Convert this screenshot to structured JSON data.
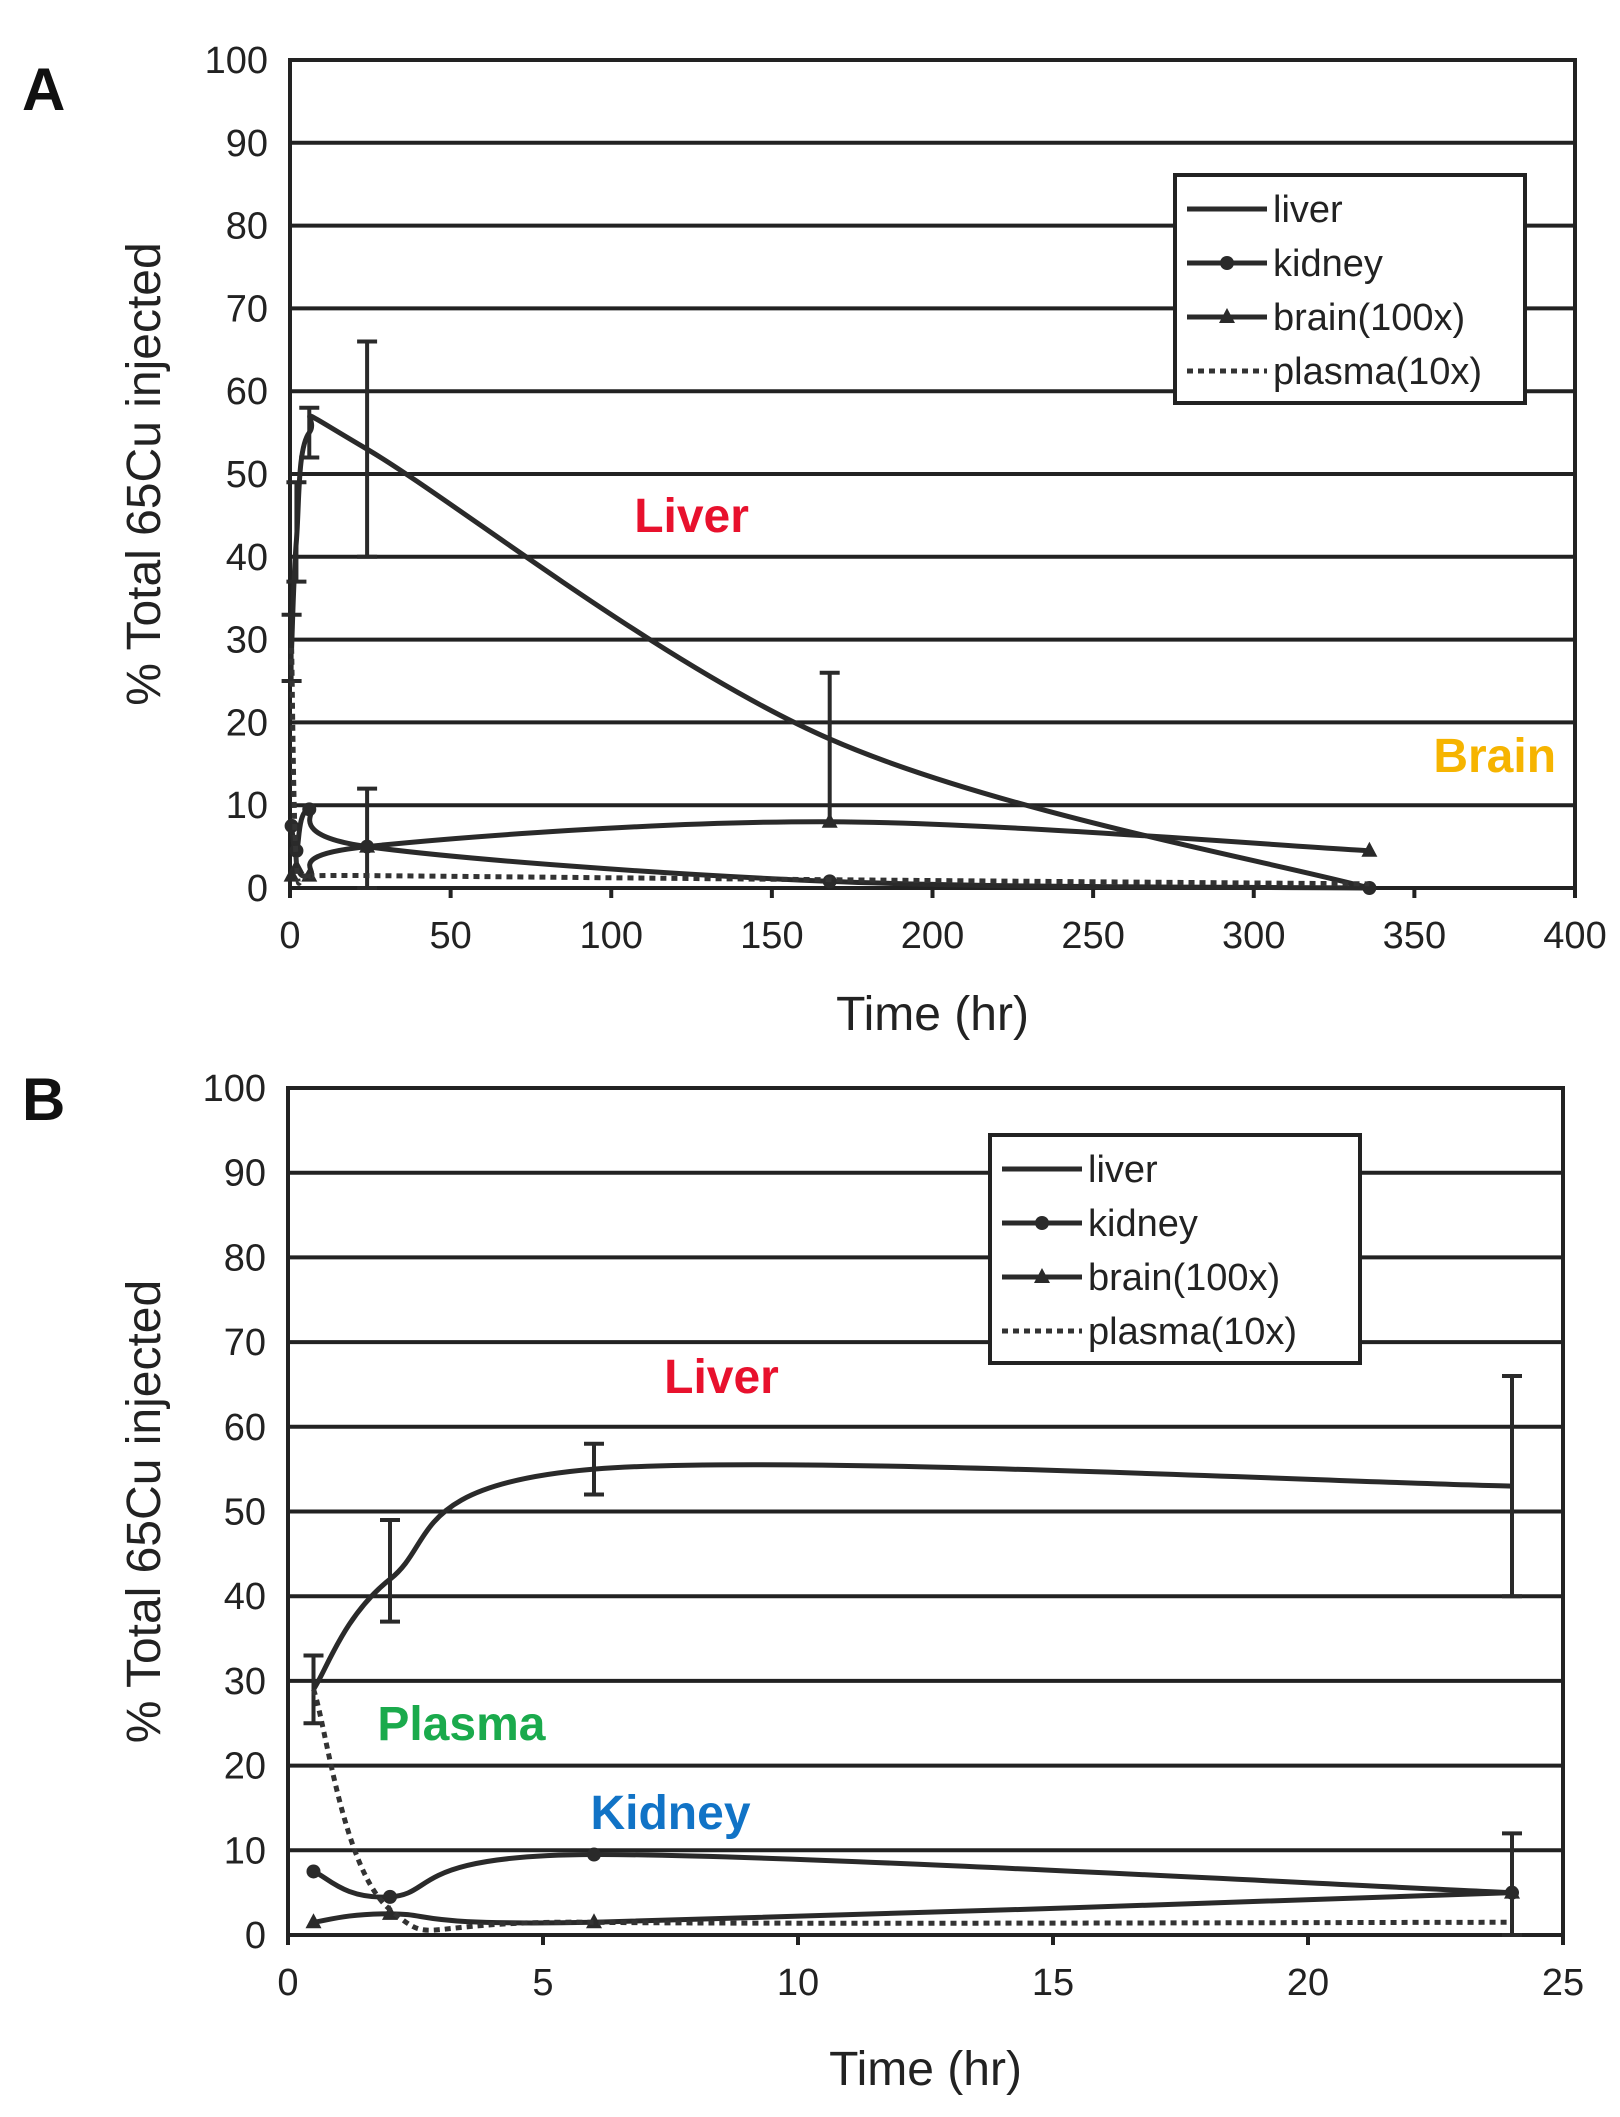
{
  "chart_data": [
    {
      "panel": "A",
      "type": "line",
      "xlabel": "Time (hr)",
      "ylabel": "% Total 65Cu injected",
      "xlim": [
        0,
        400
      ],
      "ylim": [
        0,
        100
      ],
      "x_ticks": [
        0,
        50,
        100,
        150,
        200,
        250,
        300,
        350,
        400
      ],
      "y_ticks": [
        0,
        10,
        20,
        30,
        40,
        50,
        60,
        70,
        80,
        90,
        100
      ],
      "legend": [
        "liver",
        "kidney",
        "brain(100x)",
        "plasma(10x)"
      ],
      "legend_position": "top-right",
      "annotations": [
        {
          "text": "Liver",
          "color": "#e8112d",
          "x": 125,
          "y": 43
        },
        {
          "text": "Brain",
          "color": "#f6b400",
          "x": 375,
          "y": 14
        }
      ],
      "series": [
        {
          "name": "liver",
          "style": "solid",
          "marker": "none",
          "x": [
            0.5,
            2,
            6,
            24,
            168,
            336
          ],
          "y": [
            29,
            42,
            55,
            53,
            18,
            0
          ],
          "errors": [
            {
              "x": 0.5,
              "lo": 25,
              "hi": 33
            },
            {
              "x": 2,
              "lo": 37,
              "hi": 49
            },
            {
              "x": 6,
              "lo": 52,
              "hi": 58
            },
            {
              "x": 24,
              "lo": 40,
              "hi": 66
            },
            {
              "x": 168,
              "lo": 8,
              "hi": 26
            }
          ]
        },
        {
          "name": "kidney",
          "style": "solid",
          "marker": "circle",
          "x": [
            0.5,
            2,
            6,
            24,
            168,
            336
          ],
          "y": [
            7.5,
            4.5,
            9.5,
            5,
            0.8,
            0
          ]
        },
        {
          "name": "brain(100x)",
          "style": "solid",
          "marker": "triangle",
          "x": [
            0.5,
            2,
            6,
            24,
            168,
            336
          ],
          "y": [
            1.5,
            2.5,
            1.5,
            5,
            8,
            4.5
          ],
          "errors": [
            {
              "x": 24,
              "lo": 0,
              "hi": 12
            }
          ]
        },
        {
          "name": "plasma(10x)",
          "style": "dotted",
          "marker": "none",
          "x": [
            0.5,
            2,
            6,
            24,
            168,
            336
          ],
          "y": [
            29,
            3,
            1.5,
            1.5,
            1,
            0.5
          ]
        }
      ]
    },
    {
      "panel": "B",
      "type": "line",
      "xlabel": "Time (hr)",
      "ylabel": "% Total 65Cu injected",
      "xlim": [
        0,
        25
      ],
      "ylim": [
        0,
        100
      ],
      "x_ticks": [
        0,
        5,
        10,
        15,
        20,
        25
      ],
      "y_ticks": [
        0,
        10,
        20,
        30,
        40,
        50,
        60,
        70,
        80,
        90,
        100
      ],
      "legend": [
        "liver",
        "kidney",
        "brain(100x)",
        "plasma(10x)"
      ],
      "legend_position": "top-right",
      "annotations": [
        {
          "text": "Liver",
          "color": "#e8112d",
          "x": 8.5,
          "y": 64
        },
        {
          "text": "Plasma",
          "color": "#1aaa4c",
          "x": 3.4,
          "y": 23
        },
        {
          "text": "Kidney",
          "color": "#1173c6",
          "x": 7.5,
          "y": 12.5
        }
      ],
      "series": [
        {
          "name": "liver",
          "style": "solid",
          "marker": "none",
          "x": [
            0.5,
            2,
            6,
            24
          ],
          "y": [
            29,
            42,
            55,
            53
          ],
          "errors": [
            {
              "x": 0.5,
              "lo": 25,
              "hi": 33
            },
            {
              "x": 2,
              "lo": 37,
              "hi": 49
            },
            {
              "x": 6,
              "lo": 52,
              "hi": 58
            },
            {
              "x": 24,
              "lo": 40,
              "hi": 66
            }
          ]
        },
        {
          "name": "kidney",
          "style": "solid",
          "marker": "circle",
          "x": [
            0.5,
            2,
            6,
            24
          ],
          "y": [
            7.5,
            4.5,
            9.5,
            5
          ]
        },
        {
          "name": "brain(100x)",
          "style": "solid",
          "marker": "triangle",
          "x": [
            0.5,
            2,
            6,
            24
          ],
          "y": [
            1.5,
            2.5,
            1.5,
            5
          ],
          "errors": [
            {
              "x": 24,
              "lo": 0,
              "hi": 12
            }
          ]
        },
        {
          "name": "plasma(10x)",
          "style": "dotted",
          "marker": "none",
          "x": [
            0.5,
            2,
            6,
            24
          ],
          "y": [
            29,
            3,
            1.5,
            1.5
          ]
        }
      ]
    }
  ]
}
